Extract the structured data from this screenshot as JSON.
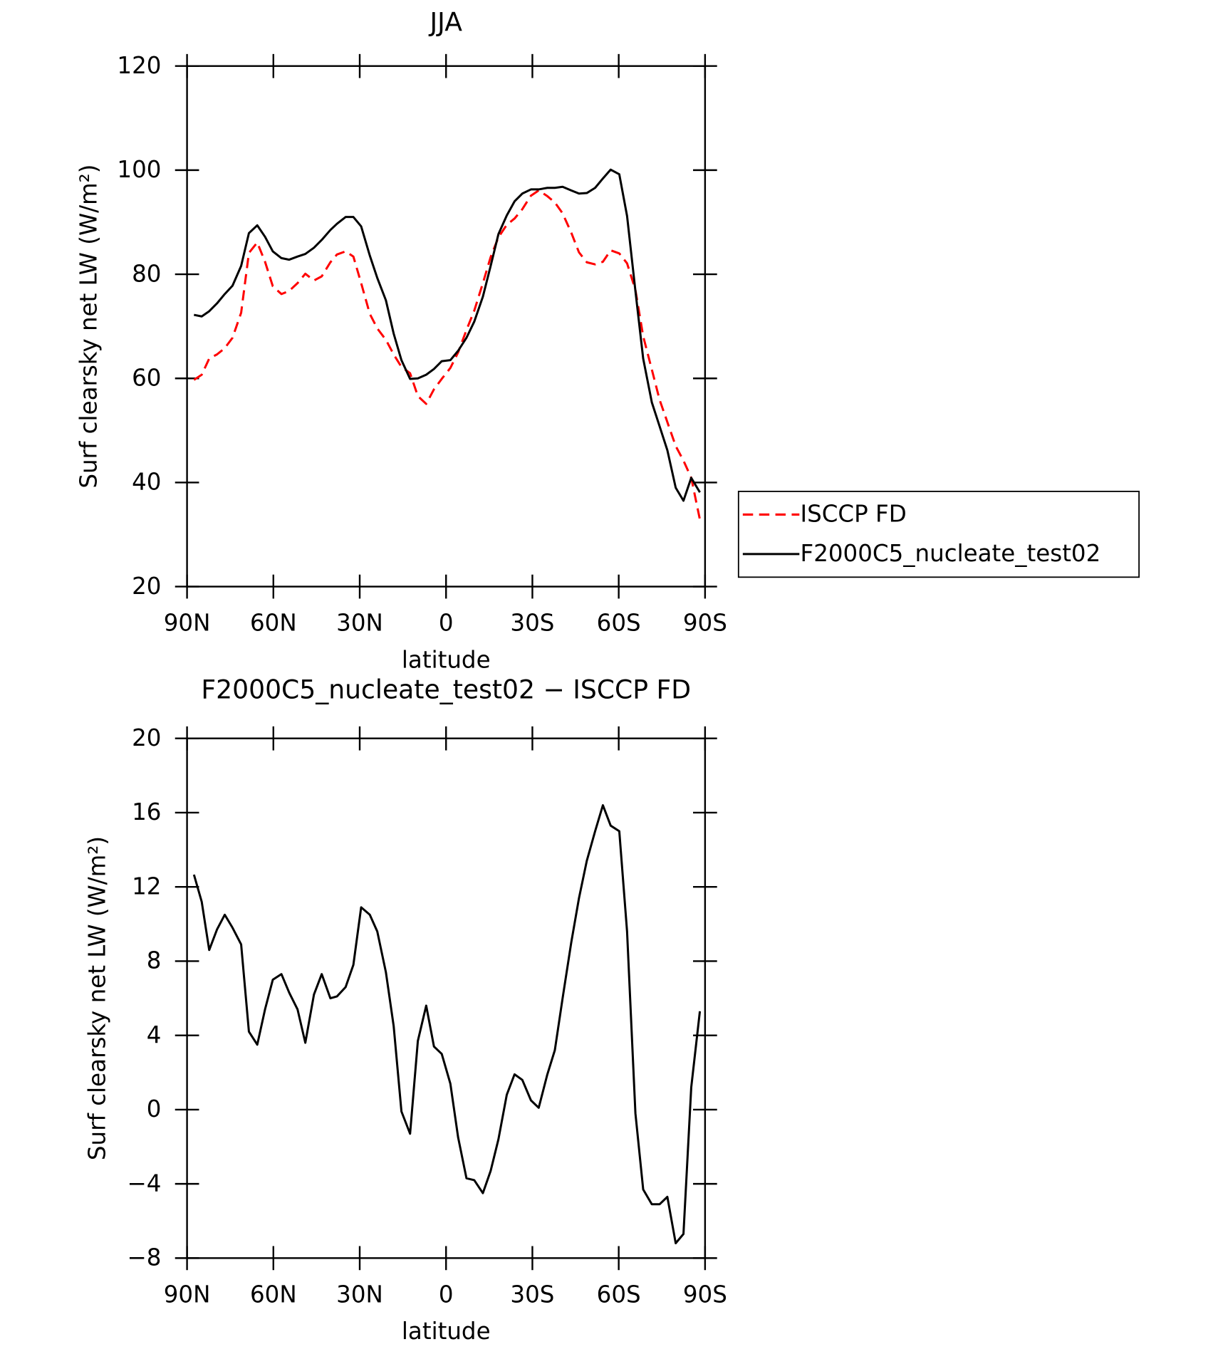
{
  "chart_data": [
    {
      "type": "line",
      "title": "JJA",
      "xlabel": "latitude",
      "ylabel": "Surf clearsky net LW (W/m²)",
      "x": [
        87.6,
        84.9,
        82.3,
        79.6,
        76.9,
        74.2,
        71.2,
        68.5,
        65.6,
        62.9,
        60.2,
        57.2,
        54.5,
        51.6,
        48.9,
        45.9,
        43.2,
        40.2,
        37.9,
        34.9,
        32.2,
        29.5,
        26.5,
        23.9,
        20.9,
        18.2,
        15.5,
        12.5,
        9.8,
        6.9,
        4.2,
        1.5,
        -1.5,
        -4.2,
        -7.1,
        -9.8,
        -12.8,
        -15.5,
        -18.2,
        -21.1,
        -23.8,
        -26.5,
        -29.5,
        -32.2,
        -35.2,
        -37.8,
        -40.5,
        -43.5,
        -46.2,
        -48.9,
        -51.8,
        -54.5,
        -57.2,
        -60.2,
        -62.9,
        -65.8,
        -68.5,
        -71.5,
        -74.2,
        -76.9,
        -79.8,
        -82.5,
        -85.2,
        -88.2
      ],
      "series": [
        {
          "name": "ISCCP FD",
          "color": "#ff0000",
          "dash": true,
          "values": [
            59.7,
            60.7,
            63.8,
            64.6,
            65.8,
            67.8,
            72.6,
            84.1,
            86.1,
            82.4,
            77.7,
            76.2,
            76.8,
            78.3,
            80.1,
            78.8,
            79.6,
            82.3,
            83.8,
            84.4,
            83.4,
            78.3,
            72.4,
            69.6,
            67.4,
            64.6,
            62.2,
            61.0,
            56.6,
            55.1,
            57.9,
            59.9,
            62.0,
            65.0,
            69.3,
            73.0,
            78.3,
            83.3,
            87.1,
            89.5,
            90.7,
            92.5,
            95.1,
            96.1,
            95.0,
            93.8,
            91.7,
            88.0,
            84.2,
            82.3,
            81.9,
            82.4,
            84.6,
            84.0,
            82.1,
            77.0,
            68.1,
            61.7,
            55.9,
            51.6,
            47.0,
            44.2,
            40.9,
            32.9
          ]
        },
        {
          "name": "F2000C5_nucleate_test02",
          "color": "#000000",
          "dash": false,
          "values": [
            72.2,
            71.9,
            72.9,
            74.4,
            76.2,
            77.8,
            81.6,
            87.9,
            89.4,
            87.2,
            84.4,
            83.1,
            82.8,
            83.4,
            83.9,
            85.1,
            86.6,
            88.5,
            89.7,
            91.0,
            91.0,
            89.2,
            83.6,
            79.3,
            75.0,
            68.6,
            63.5,
            59.9,
            60.0,
            60.7,
            61.8,
            63.3,
            63.5,
            65.3,
            67.8,
            70.9,
            75.7,
            81.6,
            87.7,
            91.3,
            94.0,
            95.5,
            96.3,
            96.3,
            96.6,
            96.6,
            96.8,
            96.1,
            95.5,
            95.6,
            96.6,
            98.4,
            100.1,
            99.2,
            91.2,
            76.8,
            63.8,
            55.4,
            50.8,
            46.2,
            39.0,
            36.5,
            40.9,
            38.1
          ]
        }
      ],
      "xlim": [
        90,
        -90
      ],
      "xticks": [
        {
          "value": 90,
          "label": "90N"
        },
        {
          "value": 60,
          "label": "60N"
        },
        {
          "value": 30,
          "label": "30N"
        },
        0,
        {
          "value": -30,
          "label": "30S"
        },
        {
          "value": -60,
          "label": "60S"
        },
        {
          "value": -90,
          "label": "90S"
        }
      ],
      "ylim": [
        20,
        120
      ],
      "yticks": [
        20,
        40,
        60,
        80,
        100,
        120
      ],
      "legend": "outside-right"
    },
    {
      "type": "line",
      "title": "F2000C5_nucleate_test02 − ISCCP FD",
      "xlabel": "latitude",
      "ylabel": "Surf clearsky net LW (W/m²)",
      "x": [
        87.6,
        84.9,
        82.3,
        79.6,
        76.9,
        74.2,
        71.2,
        68.5,
        65.6,
        62.9,
        60.2,
        57.2,
        54.5,
        51.6,
        48.9,
        45.9,
        43.2,
        40.2,
        37.9,
        34.9,
        32.2,
        29.5,
        26.5,
        23.9,
        20.9,
        18.2,
        15.5,
        12.5,
        9.8,
        6.9,
        4.2,
        1.5,
        -1.5,
        -4.2,
        -7.1,
        -9.8,
        -12.8,
        -15.5,
        -18.2,
        -21.1,
        -23.8,
        -26.5,
        -29.5,
        -32.2,
        -35.2,
        -37.8,
        -40.5,
        -43.5,
        -46.2,
        -48.9,
        -51.8,
        -54.5,
        -57.2,
        -60.2,
        -62.9,
        -65.8,
        -68.5,
        -71.5,
        -74.2,
        -76.9,
        -79.8,
        -82.5,
        -85.2,
        -88.2
      ],
      "series": [
        {
          "color": "#000000",
          "dash": false,
          "values": [
            12.66,
            11.2,
            8.6,
            9.7,
            10.5,
            9.8,
            8.9,
            4.2,
            3.5,
            5.4,
            7.0,
            7.3,
            6.3,
            5.4,
            3.6,
            6.2,
            7.3,
            6.0,
            6.1,
            6.6,
            7.8,
            10.9,
            10.5,
            9.6,
            7.4,
            4.5,
            -0.1,
            -1.3,
            3.7,
            5.6,
            3.4,
            3.0,
            1.4,
            -1.5,
            -3.7,
            -3.8,
            -4.5,
            -3.3,
            -1.6,
            0.8,
            1.9,
            1.6,
            0.5,
            0.1,
            1.9,
            3.2,
            6.0,
            9.0,
            11.4,
            13.4,
            15.0,
            16.4,
            15.3,
            15.0,
            9.6,
            -0.2,
            -4.3,
            -5.1,
            -5.1,
            -4.7,
            -7.2,
            -6.7,
            1.2,
            5.3
          ]
        }
      ],
      "xlim": [
        90,
        -90
      ],
      "xticks": [
        {
          "value": 90,
          "label": "90N"
        },
        {
          "value": 60,
          "label": "60N"
        },
        {
          "value": 30,
          "label": "30N"
        },
        0,
        {
          "value": -30,
          "label": "30S"
        },
        {
          "value": -60,
          "label": "60S"
        },
        {
          "value": -90,
          "label": "90S"
        }
      ],
      "ylim": [
        -8,
        20
      ],
      "yticks": [
        {
          "value": -8,
          "label": "−8"
        },
        {
          "value": -4,
          "label": "−4"
        },
        0,
        4,
        8,
        12,
        16,
        20
      ]
    }
  ]
}
